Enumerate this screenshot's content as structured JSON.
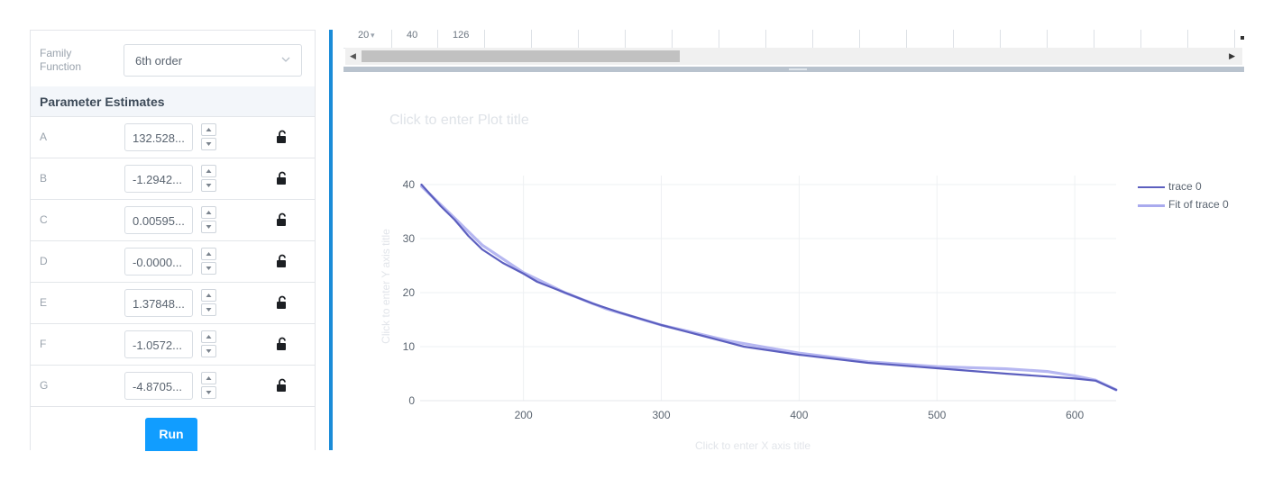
{
  "left_panel": {
    "family_function": {
      "label": "Family Function",
      "value": "6th order"
    },
    "param_header": "Parameter Estimates",
    "params": [
      {
        "name": "A",
        "value": "132.528..."
      },
      {
        "name": "B",
        "value": "-1.2942..."
      },
      {
        "name": "C",
        "value": "0.00595..."
      },
      {
        "name": "D",
        "value": "-0.0000..."
      },
      {
        "name": "E",
        "value": "1.37848..."
      },
      {
        "name": "F",
        "value": "-1.0572..."
      },
      {
        "name": "G",
        "value": "-4.8705..."
      }
    ],
    "run_label": "Run"
  },
  "grid": {
    "visible_cells": [
      "20",
      "40",
      "126"
    ]
  },
  "plot": {
    "title_placeholder": "Click to enter Plot title",
    "x_axis_placeholder": "Click to enter X axis title",
    "y_axis_placeholder": "Click to enter Y axis title"
  },
  "colors": {
    "accent": "#119dff",
    "divider": "#1a8cd8",
    "trace": "#5c5fbf",
    "fit": "#a9aaee"
  },
  "chart_data": {
    "type": "line",
    "title": "",
    "xlabel": "",
    "ylabel": "",
    "xlim": [
      125,
      630
    ],
    "ylim": [
      0,
      40
    ],
    "x_ticks": [
      200,
      300,
      400,
      500,
      600
    ],
    "y_ticks": [
      0,
      10,
      20,
      30,
      40
    ],
    "grid": true,
    "legend_position": "top-right",
    "series": [
      {
        "name": "trace 0",
        "x": [
          126,
          140,
          150,
          160,
          170,
          185,
          200,
          210,
          230,
          250,
          270,
          300,
          330,
          360,
          400,
          450,
          500,
          550,
          600,
          615,
          630
        ],
        "y": [
          40,
          36,
          33.5,
          30.5,
          28,
          25.5,
          23.5,
          22,
          20,
          18,
          16.3,
          14,
          12,
          10,
          8.5,
          7,
          6,
          5,
          4.1,
          3.7,
          2
        ]
      },
      {
        "name": "Fit of trace 0",
        "x": [
          126,
          150,
          170,
          200,
          230,
          260,
          300,
          350,
          400,
          450,
          500,
          550,
          580,
          600,
          615,
          630
        ],
        "y": [
          39.7,
          33.8,
          28.8,
          23.7,
          20,
          17,
          14,
          11,
          8.8,
          7.2,
          6.3,
          5.9,
          5.4,
          4.6,
          3.8,
          2
        ]
      }
    ]
  }
}
